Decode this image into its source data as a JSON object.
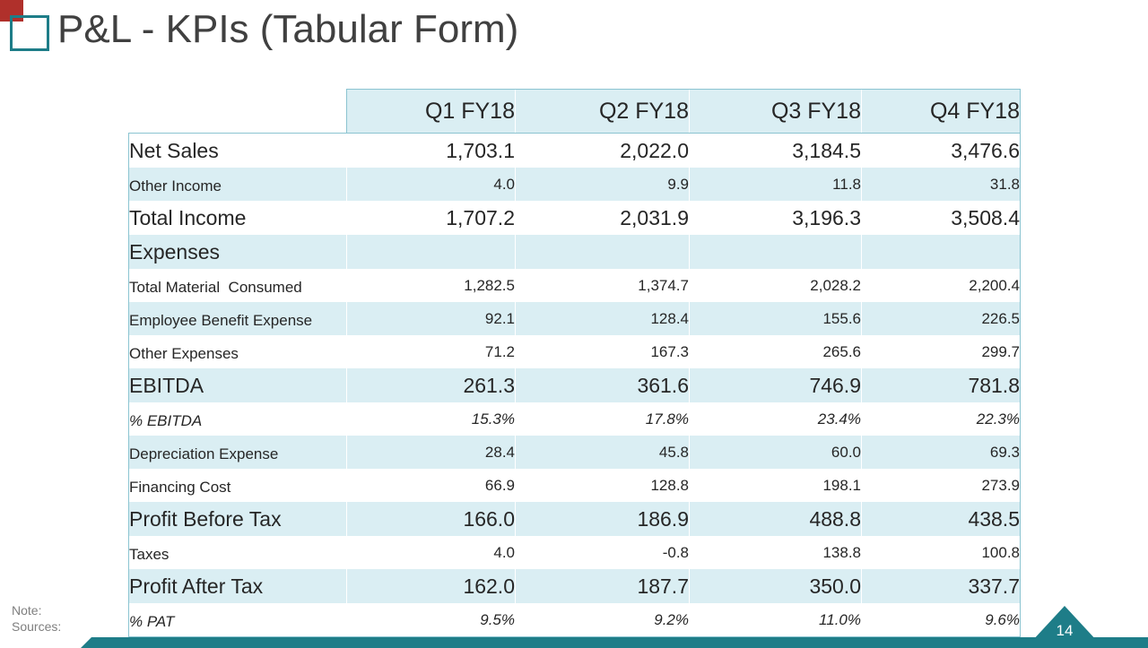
{
  "title": "P&L - KPIs (Tabular Form)",
  "colors": {
    "accent": "#1e7d88",
    "logo_red": "#b0302b",
    "row_shade": "#daeef3",
    "border": "#8bc4d1"
  },
  "table": {
    "columns": [
      "Q1 FY18",
      "Q2 FY18",
      "Q3 FY18",
      "Q4 FY18"
    ],
    "rows": [
      {
        "label": "Net Sales",
        "values": [
          "1,703.1",
          "2,022.0",
          "3,184.5",
          "3,476.6"
        ]
      },
      {
        "label": "Other Income",
        "values": [
          "4.0",
          "9.9",
          "11.8",
          "31.8"
        ]
      },
      {
        "label": "Total Income",
        "values": [
          "1,707.2",
          "2,031.9",
          "3,196.3",
          "3,508.4"
        ]
      },
      {
        "label": "Expenses",
        "values": [
          "",
          "",
          "",
          ""
        ]
      },
      {
        "label": "Total Material  Consumed",
        "values": [
          "1,282.5",
          "1,374.7",
          "2,028.2",
          "2,200.4"
        ]
      },
      {
        "label": "Employee Benefit Expense",
        "values": [
          "92.1",
          "128.4",
          "155.6",
          "226.5"
        ]
      },
      {
        "label": "Other Expenses",
        "values": [
          "71.2",
          "167.3",
          "265.6",
          "299.7"
        ]
      },
      {
        "label": "EBITDA",
        "values": [
          "261.3",
          "361.6",
          "746.9",
          "781.8"
        ]
      },
      {
        "label": "% EBITDA",
        "values": [
          "15.3%",
          "17.8%",
          "23.4%",
          "22.3%"
        ]
      },
      {
        "label": "Depreciation Expense",
        "values": [
          "28.4",
          "45.8",
          "60.0",
          "69.3"
        ]
      },
      {
        "label": "Financing Cost",
        "values": [
          "66.9",
          "128.8",
          "198.1",
          "273.9"
        ]
      },
      {
        "label": "Profit Before Tax",
        "values": [
          "166.0",
          "186.9",
          "488.8",
          "438.5"
        ]
      },
      {
        "label": "Taxes",
        "values": [
          "4.0",
          "-0.8",
          "138.8",
          "100.8"
        ]
      },
      {
        "label": "Profit After Tax",
        "values": [
          "162.0",
          "187.7",
          "350.0",
          "337.7"
        ]
      },
      {
        "label": "% PAT",
        "values": [
          "9.5%",
          "9.2%",
          "11.0%",
          "9.6%"
        ]
      }
    ]
  },
  "note_label": "Note:",
  "sources_label": "Sources:",
  "page_number": "14"
}
